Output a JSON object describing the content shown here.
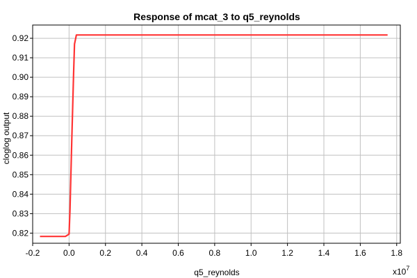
{
  "chart_data": {
    "type": "line",
    "title": "Response of mcat_3 to q5_reynolds",
    "xlabel": "q5_reynolds",
    "ylabel": "cloglog output",
    "x_multiplier_label": "x10",
    "x_multiplier_exponent": "7",
    "xlim": [
      -0.2,
      1.82
    ],
    "ylim": [
      0.8148,
      0.9268
    ],
    "x_ticks": [
      -0.2,
      0.0,
      0.2,
      0.4,
      0.6,
      0.8,
      1.0,
      1.2,
      1.4,
      1.6,
      1.8
    ],
    "x_tick_labels": [
      "-0.2",
      "0.0",
      "0.2",
      "0.4",
      "0.6",
      "0.8",
      "1.0",
      "1.2",
      "1.4",
      "1.6",
      "1.8"
    ],
    "y_ticks": [
      0.82,
      0.83,
      0.84,
      0.85,
      0.86,
      0.87,
      0.88,
      0.89,
      0.9,
      0.91,
      0.92
    ],
    "y_tick_labels": [
      "0.82",
      "0.83",
      "0.84",
      "0.85",
      "0.86",
      "0.87",
      "0.88",
      "0.89",
      "0.90",
      "0.91",
      "0.92"
    ],
    "grid": true,
    "series": [
      {
        "color": "#ff3333",
        "x": [
          -0.16,
          -0.02,
          0.0,
          0.005,
          0.01,
          0.015,
          0.02,
          0.025,
          0.03,
          0.04,
          0.1,
          1.75
        ],
        "y": [
          0.8183,
          0.8183,
          0.8195,
          0.832,
          0.85,
          0.868,
          0.885,
          0.902,
          0.917,
          0.9217,
          0.9217,
          0.9217
        ]
      }
    ]
  }
}
